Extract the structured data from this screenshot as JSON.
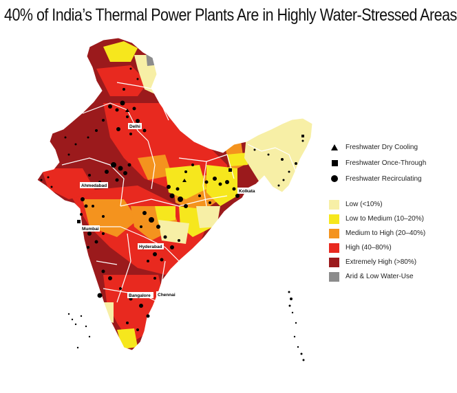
{
  "title": "40% of India’s Thermal Power Plants Are in Highly Water-Stressed Areas",
  "legend": {
    "plant_types": [
      {
        "label": "Freshwater Dry Cooling",
        "symbol": "triangle-icon"
      },
      {
        "label": "Freshwater Once-Through",
        "symbol": "square-icon"
      },
      {
        "label": "Freshwater Recirculating",
        "symbol": "circle-icon"
      }
    ],
    "water_stress": [
      {
        "label": "Low (<10%)",
        "color": "#f7efa6"
      },
      {
        "label": "Low to Medium (10–20%)",
        "color": "#f6e71d"
      },
      {
        "label": "Medium to High (20–40%)",
        "color": "#f4931e"
      },
      {
        "label": "High (40–80%)",
        "color": "#e8291f"
      },
      {
        "label": "Extremely High (>80%)",
        "color": "#9b1a1c"
      },
      {
        "label": "Arid & Low Water-Use",
        "color": "#8c8c8c"
      }
    ]
  },
  "cities": {
    "delhi": "Delhi",
    "ahmedabad": "Ahmedabad",
    "kolkata": "Kolkata",
    "mumbai": "Mumbai",
    "hyderabad": "Hyderabad",
    "bangalore": "Bangalore",
    "chennai": "Chennai"
  }
}
